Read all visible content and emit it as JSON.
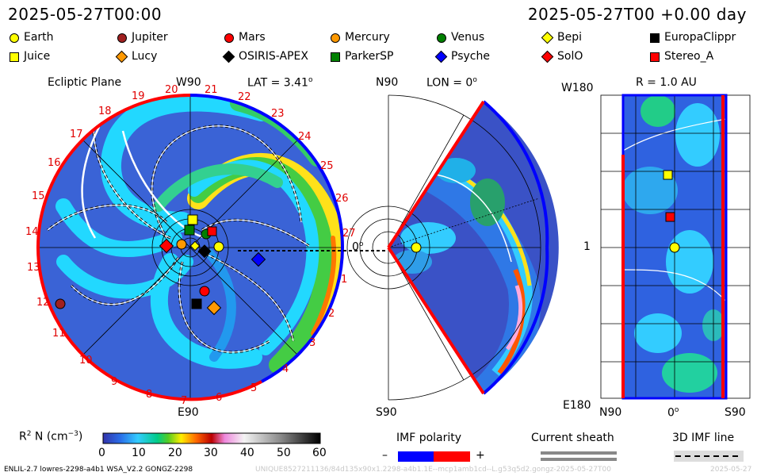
{
  "header": {
    "timestamp_left": "2025-05-27T00:00",
    "timestamp_right": "2025-05-27T00 +0.00 day"
  },
  "legend": [
    {
      "label": "Earth",
      "color": "#ffff00",
      "shape": "circle"
    },
    {
      "label": "Jupiter",
      "color": "#a02020",
      "shape": "circle"
    },
    {
      "label": "Mars",
      "color": "#ff0000",
      "shape": "circle"
    },
    {
      "label": "Mercury",
      "color": "#ff9900",
      "shape": "circle"
    },
    {
      "label": "Venus",
      "color": "#008000",
      "shape": "circle"
    },
    {
      "label": "Bepi",
      "color": "#ffff00",
      "shape": "diamond"
    },
    {
      "label": "EuropaClippr",
      "color": "#000000",
      "shape": "square"
    },
    {
      "label": "Juice",
      "color": "#ffff00",
      "shape": "square"
    },
    {
      "label": "Lucy",
      "color": "#ff9900",
      "shape": "diamond"
    },
    {
      "label": "OSIRIS-APEX",
      "color": "#000000",
      "shape": "diamond"
    },
    {
      "label": "ParkerSP",
      "color": "#008000",
      "shape": "square"
    },
    {
      "label": "Psyche",
      "color": "#0000ff",
      "shape": "diamond"
    },
    {
      "label": "SolO",
      "color": "#ff0000",
      "shape": "diamond"
    },
    {
      "label": "Stereo_A",
      "color": "#ff0000",
      "shape": "square"
    }
  ],
  "panels": {
    "ecliptic": {
      "title": "Ecliptic Plane",
      "top_label": "W90",
      "lat_label": "LAT = 3.41",
      "lat_sup": "o",
      "bottom_label": "E90",
      "zero_label": "0",
      "zero_sup": "o",
      "rim_numbers": [
        "20",
        "21",
        "22",
        "23",
        "24",
        "25",
        "26",
        "27",
        "1",
        "2",
        "3",
        "4",
        "5",
        "6",
        "7",
        "8",
        "9",
        "10",
        "11",
        "12",
        "13",
        "14",
        "15",
        "16",
        "17",
        "18",
        "19"
      ]
    },
    "meridional": {
      "top_label": "N90",
      "lon_label": "LON = 0",
      "lon_sup": "o",
      "bottom_label": "S90",
      "zero_label": "0",
      "zero_sup": "o"
    },
    "radial": {
      "top_left": "W180",
      "r_label": "R = 1.0 AU",
      "mid_left": "1",
      "bottom_left": "E180",
      "x_left": "N90",
      "x_mid": "0",
      "x_mid_sup": "o",
      "x_right": "S90"
    }
  },
  "colorbar": {
    "label": "R",
    "label_sup": "2",
    "label_rest": " N (cm",
    "label_exp": "−3",
    "label_end": ")",
    "ticks": [
      "0",
      "10",
      "20",
      "30",
      "40",
      "50",
      "60"
    ],
    "min": 0,
    "max": 60
  },
  "imf": {
    "title": "IMF polarity",
    "minus": "–",
    "plus": "+",
    "neg_color": "#0000ff",
    "pos_color": "#ff0000"
  },
  "sheath": {
    "title": "Current sheath"
  },
  "imf3d": {
    "title": "3D IMF line"
  },
  "footer": {
    "left": "ENLIL-2.7 lowres-2298-a4b1 WSA_V2.2 GONGZ-2298",
    "right": "UNIQUE8527211136/84d135x90x1.2298-a4b1.1E--mcp1amb1cd--L.g53q5d2.gongz-2025-05-27T00",
    "date": "2025-05-27"
  }
}
